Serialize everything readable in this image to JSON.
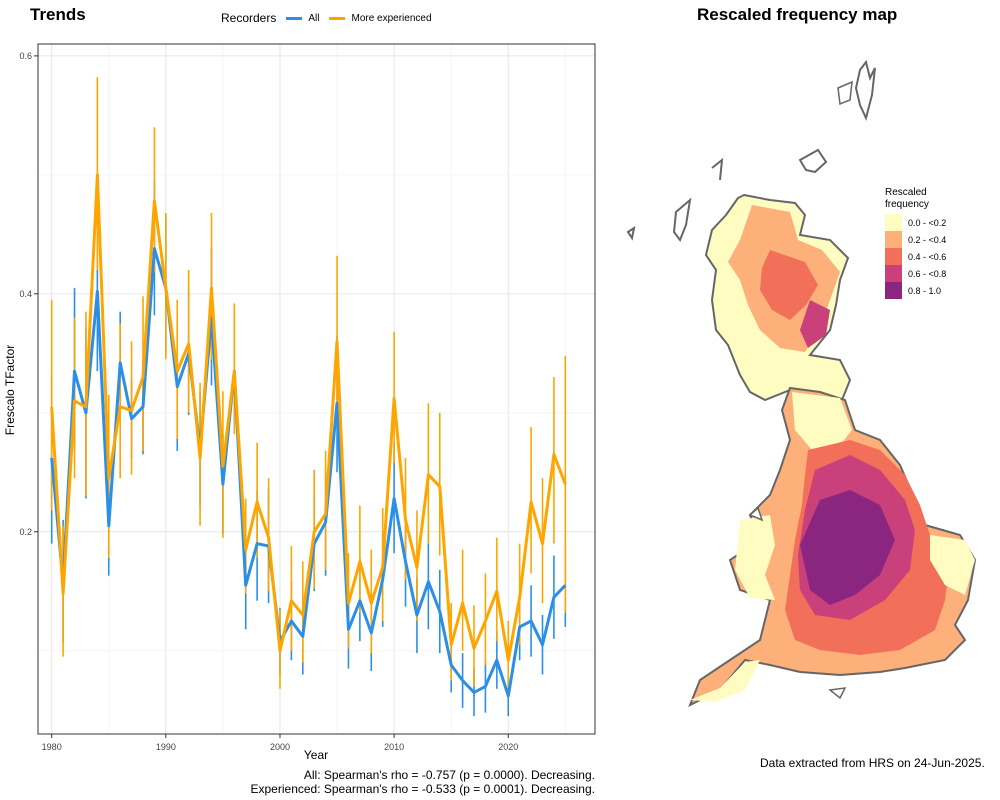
{
  "left_title": "Trends",
  "legend": {
    "title": "Recorders",
    "items": [
      {
        "label": "All",
        "color": "#2b8fe8"
      },
      {
        "label": "More experienced",
        "color": "#ffa500"
      }
    ]
  },
  "stats": [
    "All: Spearman's rho = -0.757 (p = 0.0000). Decreasing.",
    "Experienced: Spearman's rho = -0.533 (p = 0.0001). Decreasing."
  ],
  "right_title": "Rescaled frequency map",
  "map_legend": {
    "title_line1": "Rescaled",
    "title_line2": "frequency",
    "items": [
      {
        "label": "0.0 - <0.2",
        "color": "#fffcc2"
      },
      {
        "label": "0.2 - <0.4",
        "color": "#fdb07a"
      },
      {
        "label": "0.4 - <0.6",
        "color": "#f2705a"
      },
      {
        "label": "0.6 - <0.8",
        "color": "#c9407a"
      },
      {
        "label": "0.8 - 1.0",
        "color": "#8a2680"
      }
    ]
  },
  "footer_note": "Data extracted from HRS on 24-Jun-2025.",
  "chart_data": {
    "type": "line",
    "xlabel": "Year",
    "ylabel": "Frescalo TFactor",
    "xlim": [
      1978.8,
      2027.6
    ],
    "ylim": [
      0.03,
      0.61
    ],
    "xticks": [
      1980,
      1990,
      2000,
      2010,
      2020
    ],
    "yticks": [
      0.2,
      0.4,
      0.6
    ],
    "grid": true,
    "error_bars": true,
    "x": [
      1980,
      1981,
      1982,
      1983,
      1984,
      1985,
      1986,
      1987,
      1988,
      1989,
      1990,
      1991,
      1992,
      1993,
      1994,
      1995,
      1996,
      1997,
      1998,
      1999,
      2000,
      2001,
      2002,
      2003,
      2004,
      2005,
      2006,
      2007,
      2008,
      2009,
      2010,
      2011,
      2012,
      2013,
      2014,
      2015,
      2016,
      2017,
      2018,
      2019,
      2020,
      2021,
      2022,
      2023,
      2024,
      2025
    ],
    "series": [
      {
        "name": "All",
        "color": "#2b8fe8",
        "values": [
          0.262,
          0.157,
          0.335,
          0.3,
          0.402,
          0.205,
          0.342,
          0.295,
          0.305,
          0.438,
          0.405,
          0.322,
          0.35,
          0.27,
          0.38,
          0.24,
          0.335,
          0.155,
          0.19,
          0.188,
          0.108,
          0.125,
          0.112,
          0.19,
          0.208,
          0.308,
          0.118,
          0.142,
          0.115,
          0.16,
          0.228,
          0.175,
          0.13,
          0.158,
          0.133,
          0.088,
          0.075,
          0.065,
          0.07,
          0.092,
          0.062,
          0.12,
          0.125,
          0.105,
          0.145,
          0.155
        ],
        "lower": [
          0.19,
          0.107,
          0.268,
          0.228,
          0.335,
          0.163,
          0.302,
          0.262,
          0.265,
          0.382,
          0.35,
          0.268,
          0.298,
          0.222,
          0.323,
          0.198,
          0.288,
          0.118,
          0.142,
          0.14,
          0.08,
          0.092,
          0.08,
          0.15,
          0.163,
          0.25,
          0.085,
          0.108,
          0.083,
          0.12,
          0.182,
          0.137,
          0.098,
          0.118,
          0.098,
          0.065,
          0.052,
          0.045,
          0.048,
          0.068,
          0.045,
          0.092,
          0.095,
          0.08,
          0.11,
          0.12
        ],
        "upper": [
          0.335,
          0.21,
          0.405,
          0.372,
          0.47,
          0.247,
          0.385,
          0.328,
          0.345,
          0.495,
          0.465,
          0.377,
          0.405,
          0.318,
          0.438,
          0.282,
          0.382,
          0.192,
          0.235,
          0.236,
          0.136,
          0.158,
          0.144,
          0.23,
          0.253,
          0.365,
          0.152,
          0.178,
          0.147,
          0.2,
          0.275,
          0.213,
          0.162,
          0.198,
          0.168,
          0.11,
          0.098,
          0.085,
          0.092,
          0.116,
          0.08,
          0.148,
          0.155,
          0.13,
          0.18,
          0.19
        ]
      },
      {
        "name": "More experienced",
        "color": "#ffa500",
        "values": [
          0.305,
          0.148,
          0.31,
          0.305,
          0.5,
          0.245,
          0.305,
          0.302,
          0.33,
          0.478,
          0.405,
          0.335,
          0.358,
          0.262,
          0.405,
          0.255,
          0.335,
          0.185,
          0.225,
          0.195,
          0.1,
          0.142,
          0.13,
          0.2,
          0.215,
          0.36,
          0.14,
          0.175,
          0.14,
          0.17,
          0.312,
          0.21,
          0.17,
          0.248,
          0.238,
          0.105,
          0.14,
          0.102,
          0.125,
          0.15,
          0.092,
          0.145,
          0.225,
          0.19,
          0.265,
          0.24
        ],
        "lower": [
          0.218,
          0.095,
          0.245,
          0.23,
          0.42,
          0.178,
          0.245,
          0.248,
          0.268,
          0.418,
          0.345,
          0.278,
          0.3,
          0.205,
          0.345,
          0.195,
          0.282,
          0.148,
          0.178,
          0.15,
          0.068,
          0.1,
          0.09,
          0.152,
          0.168,
          0.292,
          0.102,
          0.132,
          0.098,
          0.125,
          0.258,
          0.16,
          0.125,
          0.19,
          0.18,
          0.075,
          0.1,
          0.07,
          0.088,
          0.108,
          0.063,
          0.105,
          0.165,
          0.14,
          0.19,
          0.132
        ],
        "upper": [
          0.395,
          0.205,
          0.38,
          0.385,
          0.582,
          0.315,
          0.375,
          0.36,
          0.398,
          0.54,
          0.468,
          0.395,
          0.42,
          0.325,
          0.468,
          0.318,
          0.392,
          0.228,
          0.275,
          0.245,
          0.135,
          0.188,
          0.175,
          0.252,
          0.268,
          0.432,
          0.182,
          0.222,
          0.185,
          0.22,
          0.368,
          0.262,
          0.218,
          0.308,
          0.3,
          0.14,
          0.185,
          0.138,
          0.165,
          0.195,
          0.125,
          0.19,
          0.288,
          0.245,
          0.33,
          0.348
        ]
      }
    ]
  }
}
